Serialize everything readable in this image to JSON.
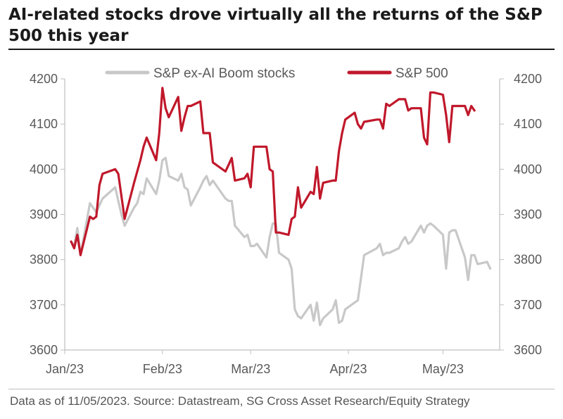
{
  "header": {
    "title": "AI-related stocks drove virtually all the returns of the S&P 500 this year"
  },
  "footer": {
    "source": "Data as of 11/05/2023. Source: Datastream, SG Cross Asset Research/Equity Strategy"
  },
  "colors": {
    "sp500": "#c0182b",
    "ex_ai": "#c8c8c8",
    "axis": "#bfbfbf",
    "text": "#595959"
  },
  "chart_data": {
    "type": "line",
    "title": "AI-related stocks drove virtually all the returns of the S&P 500 this year",
    "xlabel": "",
    "ylabel": "",
    "ylim": [
      3600,
      4200
    ],
    "y_ticks": [
      "4200",
      "4100",
      "4000",
      "3900",
      "3800",
      "3700",
      "3600"
    ],
    "y2_ticks": [
      "4200",
      "4100",
      "4000",
      "3900",
      "3800",
      "3700",
      "3600"
    ],
    "x_ticks": [
      "Jan/23",
      "Feb/23",
      "Mar/23",
      "Apr/23",
      "May/23"
    ],
    "legend_position": "top",
    "grid": false,
    "series": [
      {
        "name": "S&P ex-AI Boom stocks",
        "color": "#c8c8c8",
        "points": [
          [
            "2023-01-03",
            3840
          ],
          [
            "2023-01-04",
            3830
          ],
          [
            "2023-01-05",
            3870
          ],
          [
            "2023-01-06",
            3810
          ],
          [
            "2023-01-09",
            3925
          ],
          [
            "2023-01-10",
            3915
          ],
          [
            "2023-01-11",
            3905
          ],
          [
            "2023-01-12",
            3920
          ],
          [
            "2023-01-13",
            3935
          ],
          [
            "2023-01-17",
            3960
          ],
          [
            "2023-01-18",
            3930
          ],
          [
            "2023-01-19",
            3900
          ],
          [
            "2023-01-20",
            3875
          ],
          [
            "2023-01-23",
            3915
          ],
          [
            "2023-01-24",
            3925
          ],
          [
            "2023-01-25",
            3950
          ],
          [
            "2023-01-26",
            3945
          ],
          [
            "2023-01-27",
            3980
          ],
          [
            "2023-01-30",
            3945
          ],
          [
            "2023-01-31",
            3975
          ],
          [
            "2023-02-01",
            4020
          ],
          [
            "2023-02-02",
            4025
          ],
          [
            "2023-02-03",
            3985
          ],
          [
            "2023-02-06",
            3975
          ],
          [
            "2023-02-07",
            3990
          ],
          [
            "2023-02-08",
            3960
          ],
          [
            "2023-02-09",
            3955
          ],
          [
            "2023-02-10",
            3920
          ],
          [
            "2023-02-13",
            3960
          ],
          [
            "2023-02-14",
            3975
          ],
          [
            "2023-02-15",
            3985
          ],
          [
            "2023-02-16",
            3965
          ],
          [
            "2023-02-17",
            3975
          ],
          [
            "2023-02-21",
            3935
          ],
          [
            "2023-02-22",
            3930
          ],
          [
            "2023-02-23",
            3930
          ],
          [
            "2023-02-24",
            3875
          ],
          [
            "2023-02-27",
            3850
          ],
          [
            "2023-02-28",
            3855
          ],
          [
            "2023-03-01",
            3830
          ],
          [
            "2023-03-02",
            3830
          ],
          [
            "2023-03-03",
            3835
          ],
          [
            "2023-03-06",
            3805
          ],
          [
            "2023-03-07",
            3850
          ],
          [
            "2023-03-08",
            3880
          ],
          [
            "2023-03-09",
            3880
          ],
          [
            "2023-03-10",
            3815
          ],
          [
            "2023-03-13",
            3800
          ],
          [
            "2023-03-14",
            3780
          ],
          [
            "2023-03-15",
            3690
          ],
          [
            "2023-03-16",
            3675
          ],
          [
            "2023-03-17",
            3670
          ],
          [
            "2023-03-20",
            3700
          ],
          [
            "2023-03-21",
            3665
          ],
          [
            "2023-03-22",
            3705
          ],
          [
            "2023-03-23",
            3655
          ],
          [
            "2023-03-24",
            3670
          ],
          [
            "2023-03-27",
            3690
          ],
          [
            "2023-03-28",
            3710
          ],
          [
            "2023-03-29",
            3660
          ],
          [
            "2023-03-30",
            3665
          ],
          [
            "2023-03-31",
            3690
          ],
          [
            "2023-04-03",
            3705
          ],
          [
            "2023-04-04",
            3710
          ],
          [
            "2023-04-05",
            3760
          ],
          [
            "2023-04-06",
            3810
          ],
          [
            "2023-04-10",
            3825
          ],
          [
            "2023-04-11",
            3835
          ],
          [
            "2023-04-12",
            3810
          ],
          [
            "2023-04-13",
            3815
          ],
          [
            "2023-04-14",
            3815
          ],
          [
            "2023-04-17",
            3825
          ],
          [
            "2023-04-18",
            3840
          ],
          [
            "2023-04-19",
            3850
          ],
          [
            "2023-04-20",
            3835
          ],
          [
            "2023-04-21",
            3840
          ],
          [
            "2023-04-24",
            3875
          ],
          [
            "2023-04-25",
            3860
          ],
          [
            "2023-04-26",
            3875
          ],
          [
            "2023-04-27",
            3880
          ],
          [
            "2023-04-28",
            3875
          ],
          [
            "2023-05-01",
            3855
          ],
          [
            "2023-05-02",
            3780
          ],
          [
            "2023-05-03",
            3860
          ],
          [
            "2023-05-04",
            3865
          ],
          [
            "2023-05-05",
            3865
          ],
          [
            "2023-05-08",
            3805
          ],
          [
            "2023-05-09",
            3755
          ],
          [
            "2023-05-10",
            3810
          ],
          [
            "2023-05-11",
            3810
          ],
          [
            "2023-05-12",
            3790
          ],
          [
            "2023-05-15",
            3795
          ],
          [
            "2023-05-16",
            3780
          ]
        ]
      },
      {
        "name": "S&P 500",
        "color": "#c0182b",
        "points": [
          [
            "2023-01-03",
            3840
          ],
          [
            "2023-01-04",
            3825
          ],
          [
            "2023-01-05",
            3855
          ],
          [
            "2023-01-06",
            3810
          ],
          [
            "2023-01-09",
            3895
          ],
          [
            "2023-01-10",
            3890
          ],
          [
            "2023-01-11",
            3895
          ],
          [
            "2023-01-12",
            3965
          ],
          [
            "2023-01-13",
            3990
          ],
          [
            "2023-01-17",
            4000
          ],
          [
            "2023-01-18",
            3990
          ],
          [
            "2023-01-19",
            3940
          ],
          [
            "2023-01-20",
            3890
          ],
          [
            "2023-01-23",
            3970
          ],
          [
            "2023-01-24",
            3995
          ],
          [
            "2023-01-25",
            4020
          ],
          [
            "2023-01-26",
            4050
          ],
          [
            "2023-01-27",
            4070
          ],
          [
            "2023-01-30",
            4020
          ],
          [
            "2023-01-31",
            4080
          ],
          [
            "2023-02-01",
            4180
          ],
          [
            "2023-02-02",
            4135
          ],
          [
            "2023-02-03",
            4115
          ],
          [
            "2023-02-06",
            4160
          ],
          [
            "2023-02-07",
            4085
          ],
          [
            "2023-02-08",
            4115
          ],
          [
            "2023-02-09",
            4140
          ],
          [
            "2023-02-10",
            4140
          ],
          [
            "2023-02-13",
            4150
          ],
          [
            "2023-02-14",
            4080
          ],
          [
            "2023-02-15",
            4080
          ],
          [
            "2023-02-16",
            4080
          ],
          [
            "2023-02-17",
            4015
          ],
          [
            "2023-02-21",
            3995
          ],
          [
            "2023-02-22",
            4010
          ],
          [
            "2023-02-23",
            4025
          ],
          [
            "2023-02-24",
            3975
          ],
          [
            "2023-02-27",
            3980
          ],
          [
            "2023-02-28",
            3990
          ],
          [
            "2023-03-01",
            3960
          ],
          [
            "2023-03-02",
            4050
          ],
          [
            "2023-03-03",
            4050
          ],
          [
            "2023-03-06",
            4050
          ],
          [
            "2023-03-07",
            4000
          ],
          [
            "2023-03-08",
            3995
          ],
          [
            "2023-03-09",
            3860
          ],
          [
            "2023-03-10",
            3860
          ],
          [
            "2023-03-13",
            3855
          ],
          [
            "2023-03-14",
            3890
          ],
          [
            "2023-03-15",
            3895
          ],
          [
            "2023-03-16",
            3960
          ],
          [
            "2023-03-17",
            3915
          ],
          [
            "2023-03-20",
            3950
          ],
          [
            "2023-03-21",
            3945
          ],
          [
            "2023-03-22",
            4005
          ],
          [
            "2023-03-23",
            3935
          ],
          [
            "2023-03-24",
            3970
          ],
          [
            "2023-03-27",
            3975
          ],
          [
            "2023-03-28",
            3975
          ],
          [
            "2023-03-29",
            4040
          ],
          [
            "2023-03-30",
            4080
          ],
          [
            "2023-03-31",
            4110
          ],
          [
            "2023-04-03",
            4125
          ],
          [
            "2023-04-04",
            4100
          ],
          [
            "2023-04-05",
            4090
          ],
          [
            "2023-04-06",
            4105
          ],
          [
            "2023-04-10",
            4110
          ],
          [
            "2023-04-11",
            4110
          ],
          [
            "2023-04-12",
            4090
          ],
          [
            "2023-04-13",
            4145
          ],
          [
            "2023-04-14",
            4140
          ],
          [
            "2023-04-17",
            4155
          ],
          [
            "2023-04-18",
            4155
          ],
          [
            "2023-04-19",
            4155
          ],
          [
            "2023-04-20",
            4130
          ],
          [
            "2023-04-21",
            4135
          ],
          [
            "2023-04-24",
            4135
          ],
          [
            "2023-04-25",
            4070
          ],
          [
            "2023-04-26",
            4055
          ],
          [
            "2023-04-27",
            4170
          ],
          [
            "2023-04-28",
            4170
          ],
          [
            "2023-05-01",
            4165
          ],
          [
            "2023-05-02",
            4120
          ],
          [
            "2023-05-03",
            4060
          ],
          [
            "2023-05-04",
            4140
          ],
          [
            "2023-05-05",
            4140
          ],
          [
            "2023-05-08",
            4140
          ],
          [
            "2023-05-09",
            4120
          ],
          [
            "2023-05-10",
            4140
          ],
          [
            "2023-05-11",
            4130
          ]
        ]
      }
    ]
  }
}
